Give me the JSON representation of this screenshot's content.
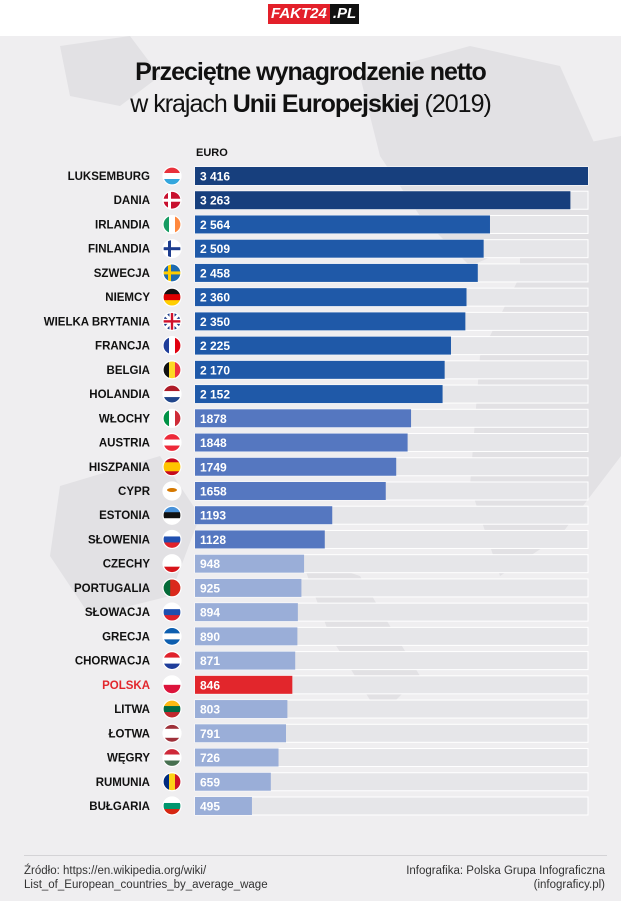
{
  "header": {
    "logo_red": "FAKT24",
    "logo_black": ".PL"
  },
  "title": {
    "line1": "Przeciętne wynagrodzenie netto",
    "line2_pre": "w krajach",
    "line2_bold": "Unii Europejskiej",
    "line2_post": "(2019)"
  },
  "colors": {
    "navy": "#173f7d",
    "blue": "#1f59a8",
    "mid": "#5577c0",
    "light": "#9aaed8",
    "highlight": "#e2262c",
    "track": "#e6e6e9"
  },
  "chart_data": {
    "type": "bar",
    "orientation": "horizontal",
    "title": "Przeciętne wynagrodzenie netto w krajach Unii Europejskiej (2019)",
    "unit": "EURO",
    "xlim": [
      0,
      3416
    ],
    "categories": [
      "LUKSEMBURG",
      "DANIA",
      "IRLANDIA",
      "FINLANDIA",
      "SZWECJA",
      "NIEMCY",
      "WIELKA BRYTANIA",
      "FRANCJA",
      "BELGIA",
      "HOLANDIA",
      "WŁOCHY",
      "AUSTRIA",
      "HISZPANIA",
      "CYPR",
      "ESTONIA",
      "SŁOWENIA",
      "CZECHY",
      "PORTUGALIA",
      "SŁOWACJA",
      "GRECJA",
      "CHORWACJA",
      "POLSKA",
      "LITWA",
      "ŁOTWA",
      "WĘGRY",
      "RUMUNIA",
      "BUŁGARIA"
    ],
    "values": [
      3416,
      3263,
      2564,
      2509,
      2458,
      2360,
      2350,
      2225,
      2170,
      2152,
      1878,
      1848,
      1749,
      1658,
      1193,
      1128,
      948,
      925,
      894,
      890,
      871,
      846,
      803,
      791,
      726,
      659,
      495
    ],
    "labels": [
      "3 416",
      "3 263",
      "2 564",
      "2 509",
      "2 458",
      "2 360",
      "2 350",
      "2 225",
      "2 170",
      "2 152",
      "1878",
      "1848",
      "1749",
      "1658",
      "1193",
      "1128",
      "948",
      "925",
      "894",
      "890",
      "871",
      "846",
      "803",
      "791",
      "726",
      "659",
      "495"
    ],
    "color_groups": [
      "navy",
      "navy",
      "blue",
      "blue",
      "blue",
      "blue",
      "blue",
      "blue",
      "blue",
      "blue",
      "mid",
      "mid",
      "mid",
      "mid",
      "mid",
      "mid",
      "light",
      "light",
      "light",
      "light",
      "light",
      "highlight",
      "light",
      "light",
      "light",
      "light",
      "light"
    ],
    "highlight": "POLSKA",
    "flags": [
      {
        "dir": "h",
        "c": [
          "#e8313b",
          "#ffffff",
          "#34a6dd"
        ]
      },
      {
        "dir": "cross",
        "c": [
          "#c8102e",
          "#ffffff"
        ]
      },
      {
        "dir": "v",
        "c": [
          "#169b62",
          "#ffffff",
          "#ff883e"
        ]
      },
      {
        "dir": "cross",
        "c": [
          "#ffffff",
          "#1d3d8f"
        ]
      },
      {
        "dir": "cross",
        "c": [
          "#1f6bb0",
          "#fecc00"
        ]
      },
      {
        "dir": "h",
        "c": [
          "#111111",
          "#dd0000",
          "#ffce00"
        ]
      },
      {
        "dir": "uk",
        "c": [
          "#1f3d8a",
          "#ffffff",
          "#d0102b"
        ]
      },
      {
        "dir": "v",
        "c": [
          "#1f3d9a",
          "#ffffff",
          "#e1000f"
        ]
      },
      {
        "dir": "v",
        "c": [
          "#111111",
          "#fdda24",
          "#ef3340"
        ]
      },
      {
        "dir": "h",
        "c": [
          "#ae1c28",
          "#ffffff",
          "#21468b"
        ]
      },
      {
        "dir": "v",
        "c": [
          "#009246",
          "#ffffff",
          "#ce2b37"
        ]
      },
      {
        "dir": "h",
        "c": [
          "#ed2939",
          "#ffffff",
          "#ed2939"
        ]
      },
      {
        "dir": "h3",
        "c": [
          "#c60b1e",
          "#ffc400",
          "#c60b1e"
        ]
      },
      {
        "dir": "h",
        "c": [
          "#ffffff",
          "#ffffff",
          "#ffffff"
        ]
      },
      {
        "dir": "h",
        "c": [
          "#4891d9",
          "#111111",
          "#ffffff"
        ]
      },
      {
        "dir": "h",
        "c": [
          "#ffffff",
          "#1f4fb0",
          "#e0212b"
        ]
      },
      {
        "dir": "h",
        "c": [
          "#ffffff",
          "#ffffff",
          "#d7141a"
        ]
      },
      {
        "dir": "v2",
        "c": [
          "#046a38",
          "#da291c"
        ]
      },
      {
        "dir": "h",
        "c": [
          "#ffffff",
          "#1f4fb0",
          "#e0212b"
        ]
      },
      {
        "dir": "h",
        "c": [
          "#0d5eaf",
          "#ffffff",
          "#0d5eaf"
        ]
      },
      {
        "dir": "h",
        "c": [
          "#e0212b",
          "#ffffff",
          "#1f3d9a"
        ]
      },
      {
        "dir": "h2",
        "c": [
          "#ffffff",
          "#dc143c"
        ]
      },
      {
        "dir": "h",
        "c": [
          "#fdb913",
          "#006a44",
          "#c1272d"
        ]
      },
      {
        "dir": "h3",
        "c": [
          "#9e3039",
          "#ffffff",
          "#9e3039"
        ]
      },
      {
        "dir": "h",
        "c": [
          "#ce2939",
          "#ffffff",
          "#477050"
        ]
      },
      {
        "dir": "v",
        "c": [
          "#002b7f",
          "#fcd116",
          "#ce1126"
        ]
      },
      {
        "dir": "h",
        "c": [
          "#ffffff",
          "#00966e",
          "#d62612"
        ]
      }
    ]
  },
  "footer": {
    "source_line1": "Źródło: https://en.wikipedia.org/wiki/",
    "source_line2": "List_of_European_countries_by_average_wage",
    "credit_line1": "Infografika: Polska Grupa Infograficzna",
    "credit_line2": "(infograficy.pl)"
  }
}
